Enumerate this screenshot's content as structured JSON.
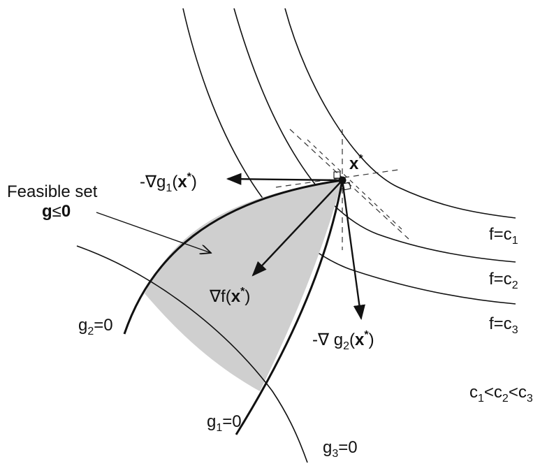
{
  "figure": {
    "feasible_set": {
      "line1": "Feasible set",
      "line2_bold": "g",
      "line2_op": "≤",
      "line2_val_bold": "0"
    },
    "optimum_point": {
      "base": "x",
      "sup": "*"
    },
    "gradients": {
      "neg_grad_g1": {
        "prefix": "-∇g",
        "sub": "1",
        "open": "(",
        "bold": "x",
        "sup": "*",
        "close": ")"
      },
      "grad_f": {
        "prefix": "∇f",
        "open": "(",
        "bold": "x",
        "sup": "*",
        "close": ")"
      },
      "neg_grad_g2": {
        "prefix": "-∇ g",
        "sub": "2",
        "open": "(",
        "bold": "x",
        "sup": "*",
        "close": ")"
      }
    },
    "level_sets": [
      {
        "prefix": "f=c",
        "sub": "1"
      },
      {
        "prefix": "f=c",
        "sub": "2"
      },
      {
        "prefix": "f=c",
        "sub": "3"
      }
    ],
    "ordering": {
      "a": "c",
      "a_sub": "1",
      "lt1": "<",
      "b": "c",
      "b_sub": "2",
      "lt2": "<",
      "c": "c",
      "c_sub": "3"
    },
    "constraints": [
      {
        "prefix": "g",
        "sub": "2",
        "eq": "=0"
      },
      {
        "prefix": "g",
        "sub": "1",
        "eq": "=0"
      },
      {
        "prefix": "g",
        "sub": "3",
        "eq": "=0"
      }
    ],
    "colors": {
      "feasible_fill": "#cfcfcf",
      "stroke": "#111111"
    }
  }
}
